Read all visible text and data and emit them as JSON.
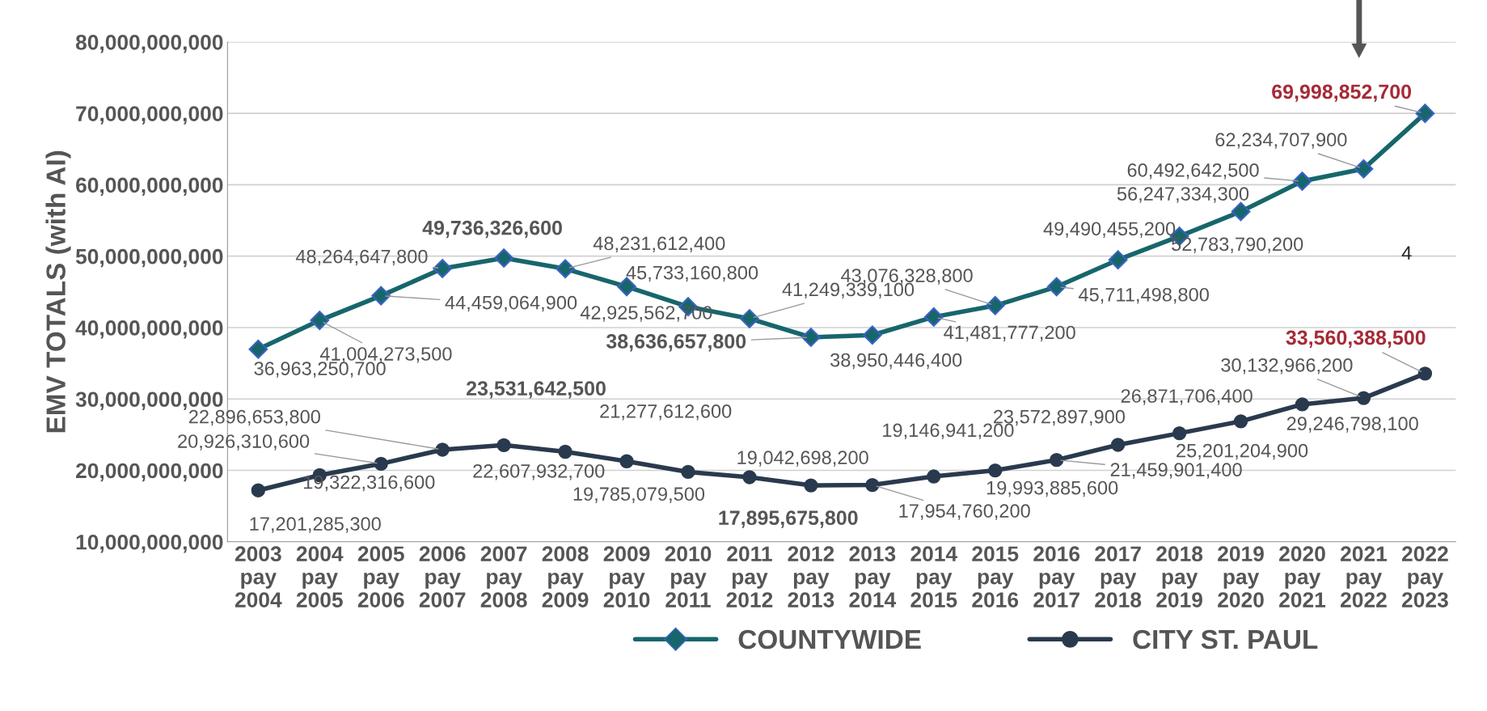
{
  "chart_data": {
    "type": "line",
    "categories": [
      "2003\npay\n2004",
      "2004\npay\n2005",
      "2005\npay\n2006",
      "2006\npay\n2007",
      "2007\npay\n2008",
      "2008\npay\n2009",
      "2009\npay\n2010",
      "2010\npay\n2011",
      "2011\npay\n2012",
      "2012\npay\n2013",
      "2013\npay\n2014",
      "2014\npay\n2015",
      "2015\npay\n2016",
      "2016\npay\n2017",
      "2017\npay\n2018",
      "2018\npay\n2019",
      "2019\npay\n2020",
      "2020\npay\n2021",
      "2021\npay\n2022",
      "2022\npay\n2023"
    ],
    "series": [
      {
        "name": "COUNTYWIDE",
        "color": "#17666c",
        "marker": "diamond",
        "values": [
          36963250700,
          41004273500,
          44459064900,
          48264647800,
          49736326600,
          48231612400,
          45733160800,
          42925562700,
          41249339100,
          38636657800,
          38950446400,
          41481777200,
          43076328800,
          45711498800,
          49490455200,
          52783790200,
          56247334300,
          60492642500,
          62234707900,
          69998852700
        ],
        "value_labels": [
          "36,963,250,700",
          "41,004,273,500",
          "44,459,064,900",
          "48,264,647,800",
          "49,736,326,600",
          "48,231,612,400",
          "45,733,160,800",
          "42,925,562,700",
          "41,249,339,100",
          "38,636,657,800",
          "38,950,446,400",
          "41,481,777,200",
          "43,076,328,800",
          "45,711,498,800",
          "49,490,455,200",
          "52,783,790,200",
          "56,247,334,300",
          "60,492,642,500",
          "62,234,707,900",
          "69,998,852,700"
        ]
      },
      {
        "name": "CITY ST. PAUL",
        "color": "#2a3a4e",
        "marker": "circle",
        "values": [
          17201285300,
          19322316600,
          20926310600,
          22896653800,
          23531642500,
          22607932700,
          21277612600,
          19785079500,
          19042698200,
          17895675800,
          17954760200,
          19146941200,
          19993885600,
          21459901400,
          23572897900,
          25201204900,
          26871706400,
          29246798100,
          30132966200,
          33560388500
        ],
        "value_labels": [
          "17,201,285,300",
          "19,322,316,600",
          "20,926,310,600",
          "22,896,653,800",
          "23,531,642,500",
          "22,607,932,700",
          "21,277,612,600",
          "19,785,079,500",
          "19,042,698,200",
          "17,895,675,800",
          "17,954,760,200",
          "19,146,941,200",
          "19,993,885,600",
          "21,459,901,400",
          "23,572,897,900",
          "25,201,204,900",
          "26,871,706,400",
          "29,246,798,100",
          "30,132,966,200",
          "33,560,388,500"
        ]
      }
    ],
    "ylabel": "EMV TOTALS (with AI)",
    "ylim": [
      10000000000,
      80000000000
    ],
    "yticks": [
      {
        "value": 10000000000,
        "label": "10,000,000,000"
      },
      {
        "value": 20000000000,
        "label": "20,000,000,000"
      },
      {
        "value": 30000000000,
        "label": "30,000,000,000"
      },
      {
        "value": 40000000000,
        "label": "40,000,000,000"
      },
      {
        "value": 50000000000,
        "label": "50,000,000,000"
      },
      {
        "value": 60000000000,
        "label": "60,000,000,000"
      },
      {
        "value": 70000000000,
        "label": "70,000,000,000"
      },
      {
        "value": 80000000000,
        "label": "80,000,000,000"
      }
    ],
    "grid": "y",
    "legend": "bottom",
    "line_style": "solid",
    "annotations": [
      "4"
    ]
  }
}
